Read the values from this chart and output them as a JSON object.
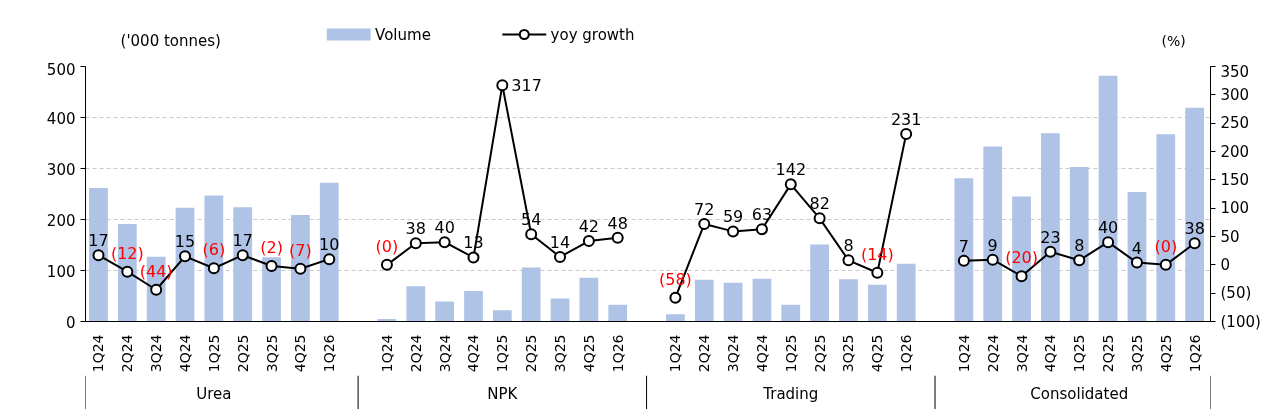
{
  "chart_data": {
    "type": "bar",
    "categories": [
      "1Q24",
      "2Q24",
      "3Q24",
      "4Q24",
      "1Q25",
      "2Q25",
      "3Q25",
      "4Q25",
      "1Q26",
      null,
      "1Q24",
      "2Q24",
      "3Q24",
      "4Q24",
      "1Q25",
      "2Q25",
      "3Q25",
      "4Q25",
      "1Q26",
      null,
      "1Q24",
      "2Q24",
      "3Q24",
      "4Q24",
      "1Q25",
      "2Q25",
      "3Q25",
      "4Q25",
      "1Q26",
      null,
      "1Q24",
      "2Q24",
      "3Q24",
      "4Q24",
      "1Q25",
      "2Q25",
      "3Q25",
      "4Q25",
      "1Q26"
    ],
    "ylabel": "('000 tonnes)",
    "y2label": "(%)",
    "ylim": [
      0,
      500
    ],
    "yticks": [
      0,
      100,
      200,
      300,
      400,
      500
    ],
    "y2lim": [
      -100,
      350
    ],
    "y2ticks": [
      {
        "value": -100,
        "label": "(100)"
      },
      {
        "value": -50,
        "label": "(50)"
      },
      0,
      50,
      100,
      150,
      200,
      250,
      300,
      350
    ],
    "grid": "y",
    "legend": "top",
    "marker": "circle",
    "series": [
      {
        "name": "Volume",
        "color": "#aec3e6",
        "values": [
          262,
          191,
          127,
          223,
          247,
          224,
          126,
          209,
          272,
          null,
          5,
          69,
          39,
          60,
          22,
          106,
          45,
          86,
          33,
          null,
          14,
          82,
          76,
          84,
          33,
          151,
          83,
          72,
          113,
          null,
          281,
          343,
          245,
          369,
          303,
          482,
          254,
          367,
          419
        ]
      },
      {
        "name": "yoy growth",
        "type": "line",
        "axis": "y2",
        "color": "#000000",
        "values": [
          17,
          -12,
          -44,
          15,
          -6,
          17,
          -2,
          -7,
          10,
          null,
          0,
          38,
          40,
          13,
          317,
          54,
          14,
          42,
          48,
          null,
          -58,
          72,
          59,
          63,
          142,
          82,
          8,
          -14,
          231,
          null,
          7,
          9,
          -20,
          23,
          8,
          40,
          4,
          0,
          38
        ],
        "value_labels": [
          "17",
          "(12)",
          "(44)",
          "15",
          "(6)",
          "17",
          "(2)",
          "(7)",
          "10",
          null,
          "(0)",
          "38",
          "40",
          "13",
          "317",
          "54",
          "14",
          "42",
          "48",
          null,
          "(58)",
          "72",
          "59",
          "63",
          "142",
          "82",
          "8",
          "(14)",
          "231",
          null,
          "7",
          "9",
          "(20)",
          "23",
          "8",
          "40",
          "4",
          "(0)",
          "38"
        ]
      }
    ],
    "annotations": [
      "Urea",
      "NPK",
      "Trading",
      "Consolidated"
    ]
  }
}
